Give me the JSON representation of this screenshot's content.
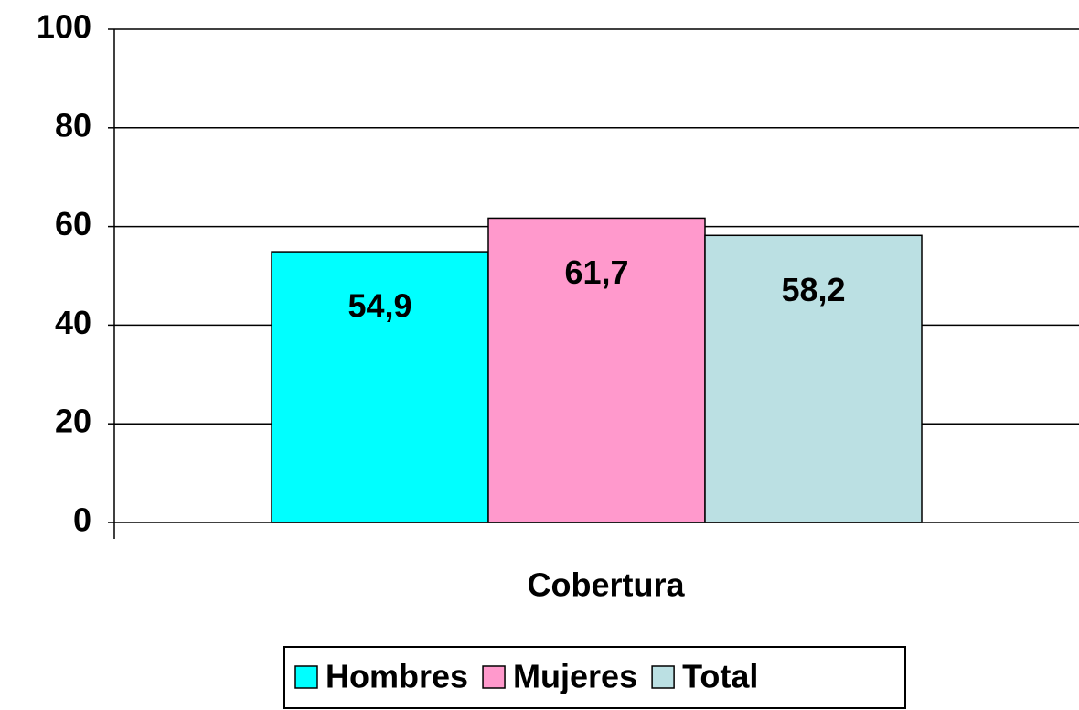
{
  "chart_data": {
    "type": "bar",
    "categories": [
      "Cobertura"
    ],
    "series": [
      {
        "name": "Hombres",
        "color": "#00ffff",
        "values": [
          54.9
        ],
        "value_labels": [
          "54,9"
        ]
      },
      {
        "name": "Mujeres",
        "color": "#ff99cc",
        "values": [
          61.7
        ],
        "value_labels": [
          "61,7"
        ]
      },
      {
        "name": "Total",
        "color": "#bbe0e3",
        "values": [
          58.2
        ],
        "value_labels": [
          "58,2"
        ]
      }
    ],
    "ylim": [
      0,
      100
    ],
    "yticks": [
      0,
      20,
      40,
      60,
      80,
      100
    ],
    "grid": true,
    "legend": "bottom"
  }
}
